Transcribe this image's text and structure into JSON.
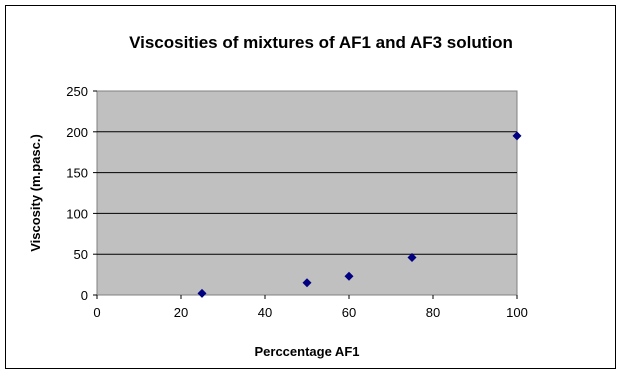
{
  "chart_data": {
    "type": "scatter",
    "title": "Viscosities of mixtures of AF1 and AF3 solution",
    "xlabel": "Perccentage AF1",
    "ylabel": "Viscosity (m.pasc.)",
    "xlim": [
      0,
      100
    ],
    "ylim": [
      0,
      250
    ],
    "xticks": [
      0,
      20,
      40,
      60,
      80,
      100
    ],
    "yticks": [
      0,
      50,
      100,
      150,
      200,
      250
    ],
    "grid": "horizontal",
    "legend": "none",
    "plot_background": "#c0c0c0",
    "marker_color": "#000080",
    "points": [
      {
        "x": 25,
        "y": 2
      },
      {
        "x": 50,
        "y": 15
      },
      {
        "x": 60,
        "y": 23
      },
      {
        "x": 75,
        "y": 46
      },
      {
        "x": 100,
        "y": 195
      }
    ]
  }
}
